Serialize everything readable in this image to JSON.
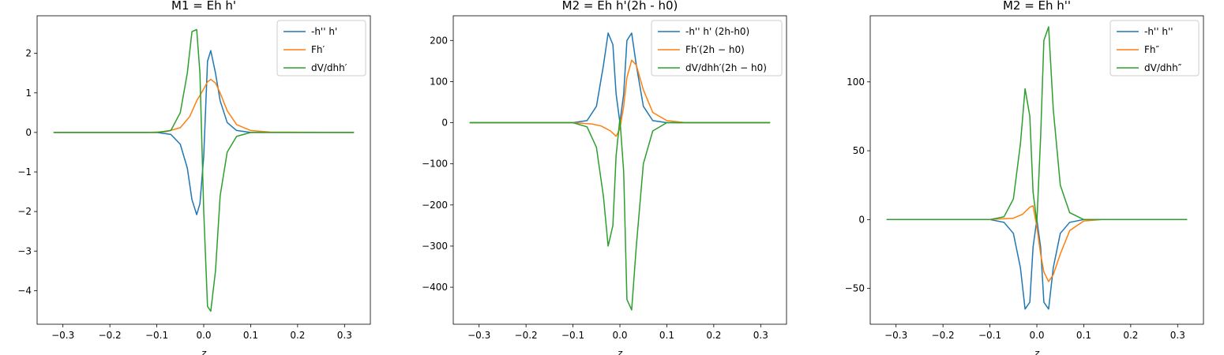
{
  "chart_data": [
    {
      "type": "line",
      "title": "M1 = Eh h'",
      "xlabel": "z",
      "ylabel": "",
      "xlim": [
        -0.355,
        0.355
      ],
      "ylim": [
        -4.85,
        2.95
      ],
      "xticks": [
        -0.3,
        -0.2,
        -0.1,
        0.0,
        0.1,
        0.2,
        0.3
      ],
      "xtick_labels": [
        "−0.3",
        "−0.2",
        "−0.1",
        "0.0",
        "0.1",
        "0.2",
        "0.3"
      ],
      "yticks": [
        -4,
        -3,
        -2,
        -1,
        0,
        1,
        2
      ],
      "ytick_labels": [
        "−4",
        "−3",
        "−2",
        "−1",
        "0",
        "1",
        "2"
      ],
      "grid": false,
      "legend": "top-right",
      "series": [
        {
          "name": "-h'' h'",
          "color": "#1f77b4",
          "x": [
            -0.32,
            -0.1,
            -0.07,
            -0.05,
            -0.035,
            -0.025,
            -0.015,
            -0.008,
            0.0,
            0.008,
            0.015,
            0.025,
            0.035,
            0.05,
            0.07,
            0.1,
            0.32
          ],
          "y": [
            0,
            0,
            -0.05,
            -0.3,
            -0.9,
            -1.7,
            -2.08,
            -1.8,
            -0.6,
            1.8,
            2.07,
            1.5,
            0.8,
            0.25,
            0.05,
            0,
            0
          ]
        },
        {
          "name": "Fh′",
          "color": "#ff7f0e",
          "x": [
            -0.32,
            -0.12,
            -0.08,
            -0.05,
            -0.03,
            -0.015,
            0.0,
            0.008,
            0.015,
            0.025,
            0.035,
            0.05,
            0.07,
            0.1,
            0.14,
            0.32
          ],
          "y": [
            0,
            0,
            0.02,
            0.12,
            0.4,
            0.8,
            1.1,
            1.28,
            1.34,
            1.25,
            1.0,
            0.55,
            0.2,
            0.05,
            0.01,
            0
          ]
        },
        {
          "name": "dV/dhh′",
          "color": "#2ca02c",
          "x": [
            -0.32,
            -0.1,
            -0.07,
            -0.05,
            -0.035,
            -0.025,
            -0.015,
            -0.008,
            0.0,
            0.008,
            0.015,
            0.025,
            0.035,
            0.05,
            0.07,
            0.1,
            0.32
          ],
          "y": [
            0,
            0,
            0.05,
            0.5,
            1.5,
            2.55,
            2.6,
            1.5,
            -2.0,
            -4.4,
            -4.52,
            -3.5,
            -1.6,
            -0.5,
            -0.1,
            0,
            0
          ]
        }
      ]
    },
    {
      "type": "line",
      "title": "M2 = Eh h'(2h - h0)",
      "xlabel": "z",
      "ylabel": "",
      "xlim": [
        -0.355,
        0.355
      ],
      "ylim": [
        -490,
        260
      ],
      "xticks": [
        -0.3,
        -0.2,
        -0.1,
        0.0,
        0.1,
        0.2,
        0.3
      ],
      "xtick_labels": [
        "−0.3",
        "−0.2",
        "−0.1",
        "0.0",
        "0.1",
        "0.2",
        "0.3"
      ],
      "yticks": [
        -400,
        -300,
        -200,
        -100,
        0,
        100,
        200
      ],
      "ytick_labels": [
        "−400",
        "−300",
        "−200",
        "−100",
        "0",
        "100",
        "200"
      ],
      "grid": false,
      "legend": "top-right",
      "series": [
        {
          "name": "-h'' h' (2h-h0)",
          "color": "#1f77b4",
          "x": [
            -0.32,
            -0.1,
            -0.07,
            -0.05,
            -0.035,
            -0.025,
            -0.015,
            -0.008,
            0.0,
            0.008,
            0.015,
            0.025,
            0.035,
            0.05,
            0.07,
            0.1,
            0.32
          ],
          "y": [
            0,
            0,
            5,
            40,
            140,
            218,
            190,
            70,
            0,
            70,
            200,
            218,
            140,
            40,
            5,
            0,
            0
          ]
        },
        {
          "name": "Fh′(2h − h0)",
          "color": "#ff7f0e",
          "x": [
            -0.32,
            -0.1,
            -0.06,
            -0.04,
            -0.02,
            -0.008,
            0.0,
            0.008,
            0.015,
            0.025,
            0.035,
            0.05,
            0.07,
            0.1,
            0.14,
            0.32
          ],
          "y": [
            0,
            0,
            -3,
            -8,
            -20,
            -33,
            -15,
            40,
            110,
            152,
            140,
            80,
            25,
            5,
            0,
            0
          ]
        },
        {
          "name": "dV/dhh′(2h − h0)",
          "color": "#2ca02c",
          "x": [
            -0.32,
            -0.1,
            -0.07,
            -0.05,
            -0.035,
            -0.025,
            -0.015,
            -0.008,
            0.0,
            0.008,
            0.015,
            0.025,
            0.035,
            0.05,
            0.07,
            0.1,
            0.32
          ],
          "y": [
            0,
            0,
            -10,
            -60,
            -180,
            -300,
            -250,
            -80,
            10,
            -120,
            -430,
            -455,
            -300,
            -100,
            -20,
            0,
            0
          ]
        }
      ]
    },
    {
      "type": "line",
      "title": "M2 = Eh h''",
      "xlabel": "z",
      "ylabel": "",
      "xlim": [
        -0.355,
        0.355
      ],
      "ylim": [
        -76,
        148
      ],
      "xticks": [
        -0.3,
        -0.2,
        -0.1,
        0.0,
        0.1,
        0.2,
        0.3
      ],
      "xtick_labels": [
        "−0.3",
        "−0.2",
        "−0.1",
        "0.0",
        "0.1",
        "0.2",
        "0.3"
      ],
      "yticks": [
        -50,
        0,
        50,
        100
      ],
      "ytick_labels": [
        "−50",
        "0",
        "50",
        "100"
      ],
      "grid": false,
      "legend": "top-right",
      "series": [
        {
          "name": "-h'' h''",
          "color": "#1f77b4",
          "x": [
            -0.32,
            -0.1,
            -0.07,
            -0.05,
            -0.035,
            -0.025,
            -0.015,
            -0.008,
            0.0,
            0.008,
            0.015,
            0.025,
            0.035,
            0.05,
            0.07,
            0.1,
            0.32
          ],
          "y": [
            0,
            0,
            -2,
            -10,
            -35,
            -65,
            -60,
            -20,
            0,
            -20,
            -60,
            -65,
            -35,
            -10,
            -2,
            0,
            0
          ]
        },
        {
          "name": "Fh″",
          "color": "#ff7f0e",
          "x": [
            -0.32,
            -0.1,
            -0.05,
            -0.03,
            -0.015,
            -0.008,
            0.0,
            0.008,
            0.015,
            0.025,
            0.035,
            0.05,
            0.07,
            0.1,
            0.14,
            0.32
          ],
          "y": [
            0,
            0,
            1,
            4,
            9,
            10,
            -5,
            -25,
            -38,
            -45,
            -40,
            -25,
            -8,
            -1,
            0,
            0
          ]
        },
        {
          "name": "dV/dhh″",
          "color": "#2ca02c",
          "x": [
            -0.32,
            -0.1,
            -0.07,
            -0.05,
            -0.035,
            -0.025,
            -0.015,
            -0.008,
            0.0,
            0.008,
            0.015,
            0.025,
            0.035,
            0.05,
            0.07,
            0.1,
            0.32
          ],
          "y": [
            0,
            0,
            2,
            15,
            55,
            95,
            75,
            20,
            -2,
            60,
            130,
            140,
            80,
            25,
            5,
            0,
            0
          ]
        }
      ]
    }
  ]
}
